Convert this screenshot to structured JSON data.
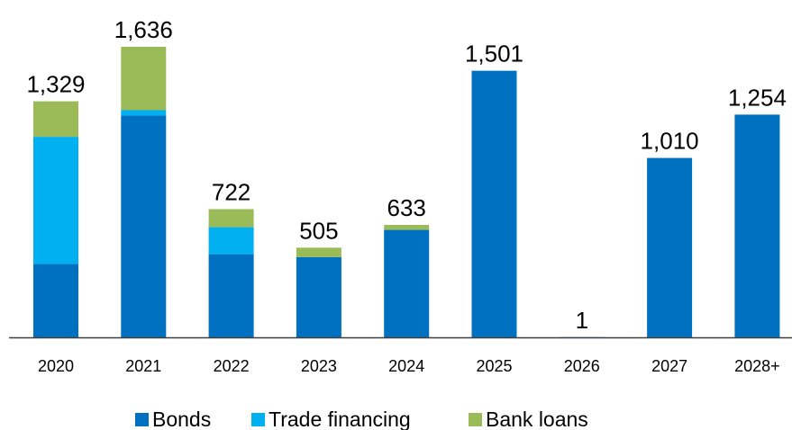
{
  "chart_data": {
    "type": "bar",
    "stacked": true,
    "categories": [
      "2020",
      "2021",
      "2022",
      "2023",
      "2024",
      "2025",
      "2026",
      "2027",
      "2028+"
    ],
    "series": [
      {
        "name": "Bonds",
        "color": "#0070C0",
        "values": [
          414,
          1249,
          468,
          452,
          605,
          1501,
          1,
          1010,
          1254
        ]
      },
      {
        "name": "Trade financing",
        "color": "#00B0F0",
        "values": [
          715,
          30,
          152,
          0,
          0,
          0,
          0,
          0,
          0
        ]
      },
      {
        "name": "Bank loans",
        "color": "#9BBB59",
        "values": [
          200,
          357,
          102,
          53,
          28,
          0,
          0,
          0,
          0
        ]
      }
    ],
    "totals": [
      "1,329",
      "1,636",
      "722",
      "505",
      "633",
      "1,501",
      "1",
      "1,010",
      "1,254"
    ],
    "ylim": [
      0,
      1636
    ],
    "grid": false,
    "legend_position": "bottom",
    "title": "",
    "xlabel": "",
    "ylabel": ""
  }
}
